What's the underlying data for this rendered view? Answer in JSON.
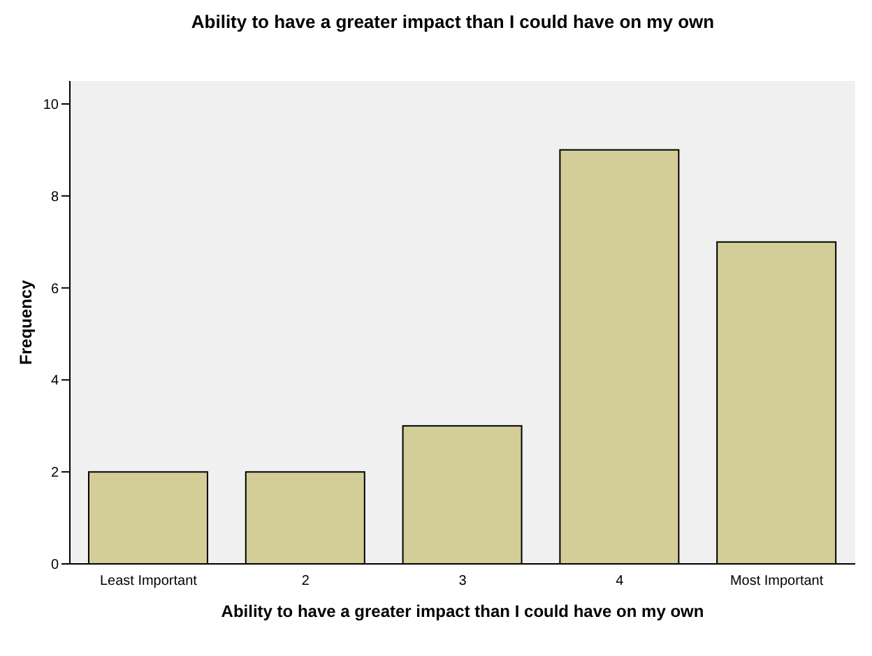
{
  "chart_data": {
    "type": "bar",
    "title": "Ability to have a greater impact than I could have on my own",
    "xlabel": "Ability to have a greater impact than I could have on my own",
    "ylabel": "Frequency",
    "categories": [
      "Least Important",
      "2",
      "3",
      "4",
      "Most Important"
    ],
    "values": [
      2,
      2,
      3,
      9,
      7
    ],
    "color": "#d3ce97",
    "ylim": [
      0,
      10.5
    ],
    "yticks": [
      0,
      2,
      4,
      6,
      8,
      10
    ],
    "grid": false
  }
}
